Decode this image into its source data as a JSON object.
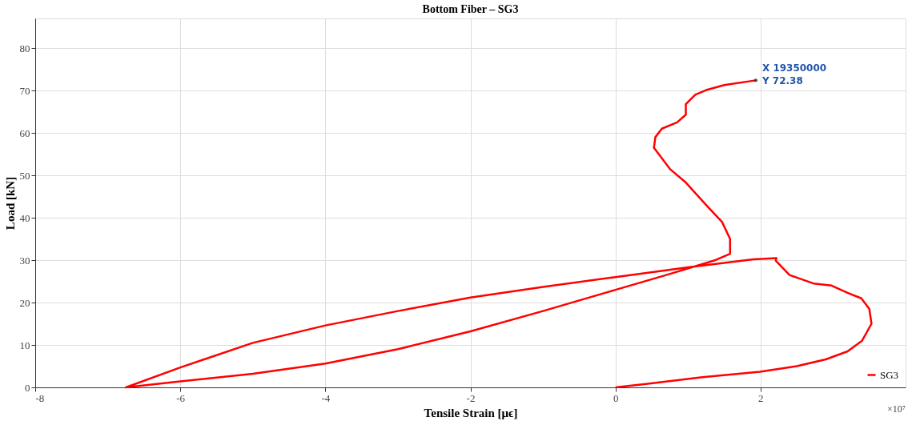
{
  "chart_data": {
    "type": "line",
    "title": "Bottom Fiber – SG3",
    "xlabel": "Tensile Strain  [μϵ]",
    "ylabel": "Load [kN]",
    "xlim": [
      -8,
      4
    ],
    "ylim": [
      0,
      87
    ],
    "xticks": [
      -8,
      -6,
      -4,
      -2,
      0,
      2
    ],
    "yticks": [
      0,
      10,
      20,
      30,
      40,
      50,
      60,
      70,
      80
    ],
    "grid": true,
    "legend": "bottom right",
    "line_style": "solid",
    "marker": "none",
    "series": [
      {
        "name": "SG3",
        "color": "#ff0000",
        "x": [
          0,
          0.42,
          1.2,
          1.99,
          2.5,
          2.9,
          3.2,
          3.4,
          3.53,
          3.5,
          3.39,
          3.2,
          2.98,
          2.73,
          2.4,
          2.21,
          2.22,
          1.9,
          1.0,
          0,
          -1.0,
          -2.0,
          -3.0,
          -4.0,
          -5.0,
          -6.0,
          -6.75,
          -6.0,
          -5.0,
          -4.0,
          -3.0,
          -2.0,
          -1.0,
          0,
          0.7,
          1.36,
          1.58,
          1.58,
          1.47,
          1.25,
          0.97,
          0.75,
          0.53,
          0.55,
          0.64,
          0.85,
          0.97,
          0.97,
          1.1,
          1.25,
          1.5,
          1.935
        ],
        "values": [
          0,
          0.8,
          2.4,
          3.7,
          5,
          6.6,
          8.5,
          11,
          15,
          18.5,
          21,
          22.3,
          24,
          24.5,
          26.5,
          29.9,
          30.5,
          30.2,
          28.3,
          26,
          23.7,
          21.2,
          18,
          14.6,
          10.5,
          4.7,
          0,
          1.4,
          3.2,
          5.6,
          9,
          13.2,
          18,
          23,
          26.5,
          29.9,
          31.5,
          35,
          39,
          43,
          48.3,
          51.5,
          56.5,
          59,
          61,
          62.5,
          64.3,
          66.8,
          69,
          70.1,
          71.3,
          72.4
        ]
      }
    ],
    "annotations": [
      "×10⁷",
      {
        "text": "X 19350000\nY 72.38",
        "x": 1.935,
        "y": 72.4
      }
    ]
  }
}
